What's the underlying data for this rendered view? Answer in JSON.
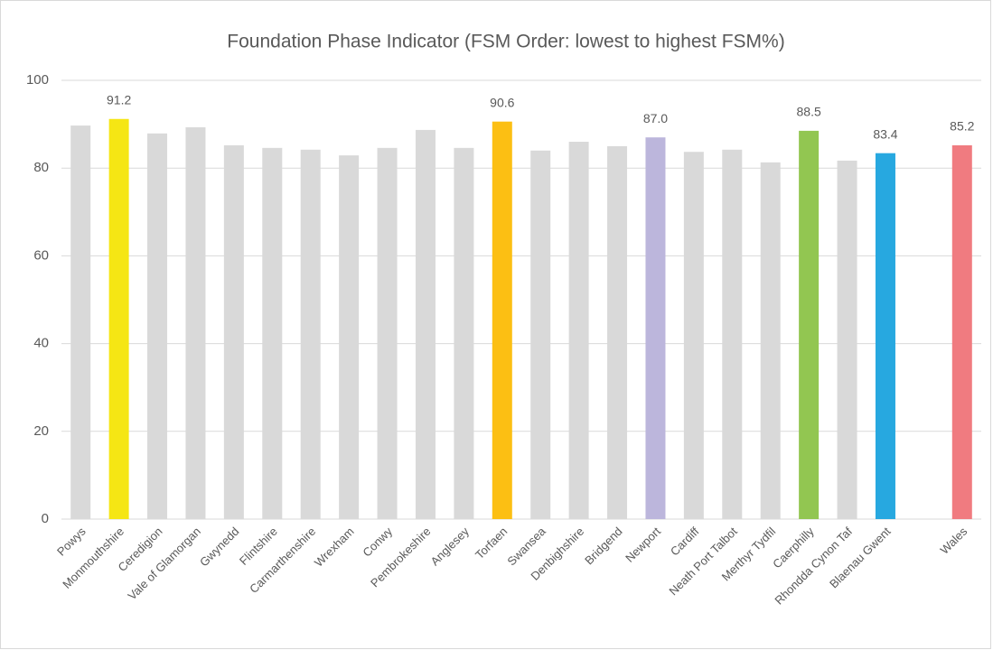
{
  "chart_data": {
    "type": "bar",
    "title": "Foundation Phase Indicator (FSM Order: lowest to highest FSM%)",
    "categories": [
      "Powys",
      "Monmouthshire",
      "Ceredigion",
      "Vale of Glamorgan",
      "Gwynedd",
      "Flintshire",
      "Carmarthenshire",
      "Wrexham",
      "Conwy",
      "Pembrokeshire",
      "Anglesey",
      "Torfaen",
      "Swansea",
      "Denbighshire",
      "Bridgend",
      "Newport",
      "Cardiff",
      "Neath Port Talbot",
      "Merthyr Tydfil",
      "Caerphilly",
      "Rhondda Cynon Taf",
      "Blaenau Gwent",
      null,
      "Wales"
    ],
    "values": [
      89.7,
      91.2,
      87.9,
      89.3,
      85.2,
      84.6,
      84.2,
      82.9,
      84.6,
      88.7,
      84.6,
      90.6,
      84.0,
      86.0,
      85.0,
      87.0,
      83.7,
      84.2,
      81.3,
      88.5,
      81.7,
      83.4,
      null,
      85.2
    ],
    "value_labels": [
      null,
      "91.2",
      null,
      null,
      null,
      null,
      null,
      null,
      null,
      null,
      null,
      "90.6",
      null,
      null,
      null,
      "87.0",
      null,
      null,
      null,
      "88.5",
      null,
      "83.4",
      null,
      "85.2"
    ],
    "colors": [
      "#d9d9d9",
      "#f5e614",
      "#d9d9d9",
      "#d9d9d9",
      "#d9d9d9",
      "#d9d9d9",
      "#d9d9d9",
      "#d9d9d9",
      "#d9d9d9",
      "#d9d9d9",
      "#d9d9d9",
      "#fcbf13",
      "#d9d9d9",
      "#d9d9d9",
      "#d9d9d9",
      "#bcb6dc",
      "#d9d9d9",
      "#d9d9d9",
      "#d9d9d9",
      "#92c651",
      "#d9d9d9",
      "#27a8e0",
      null,
      "#f07b80"
    ],
    "ylim": [
      0,
      100
    ],
    "yticks": [
      0,
      20,
      40,
      60,
      80,
      100
    ],
    "grid": true
  }
}
